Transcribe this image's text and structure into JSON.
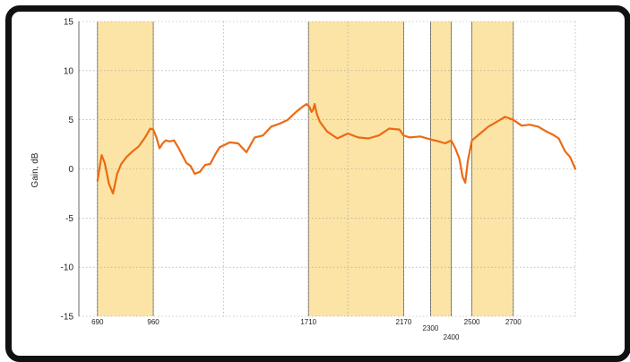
{
  "chart_data": {
    "type": "line",
    "ylabel": "Gain, dB",
    "xlabel": "",
    "xlim": [
      600,
      3000
    ],
    "ylim": [
      -15,
      15
    ],
    "y_ticks": [
      -15,
      -10,
      -5,
      0,
      5,
      10,
      15
    ],
    "grid": true,
    "x_tick_labels": [
      {
        "label": "690",
        "x": 690
      },
      {
        "label": "960",
        "x": 960
      },
      {
        "label": "1710",
        "x": 1710
      },
      {
        "label": "2170",
        "x": 2170
      },
      {
        "label": "2300",
        "x": 2300
      },
      {
        "label": "2400",
        "x": 2400
      },
      {
        "label": "2500",
        "x": 2500
      },
      {
        "label": "2700",
        "x": 2700
      }
    ],
    "x_grid": [
      690,
      960,
      1300,
      1710,
      1900,
      2170,
      2300,
      2400,
      2500,
      2700,
      3000
    ],
    "bands": [
      {
        "x0": 690,
        "x1": 960
      },
      {
        "x0": 1710,
        "x1": 2170
      },
      {
        "x0": 2300,
        "x1": 2400
      },
      {
        "x0": 2500,
        "x1": 2700
      }
    ],
    "band_color": "#fbe4a6",
    "line_color": "#ec6a14",
    "series": [
      {
        "x": [
          690,
          710,
          725,
          745,
          765,
          785,
          805,
          830,
          860,
          890,
          920,
          945,
          960,
          975,
          990,
          1005,
          1020,
          1040,
          1060,
          1080,
          1100,
          1120,
          1140,
          1160,
          1185,
          1210,
          1235,
          1260,
          1280,
          1300,
          1330,
          1370,
          1410,
          1450,
          1490,
          1530,
          1570,
          1610,
          1650,
          1680,
          1700,
          1715,
          1725,
          1732,
          1740,
          1750,
          1765,
          1800,
          1850,
          1900,
          1950,
          2000,
          2050,
          2100,
          2150,
          2170,
          2200,
          2250,
          2300,
          2340,
          2370,
          2400,
          2420,
          2440,
          2455,
          2468,
          2480,
          2500,
          2540,
          2580,
          2620,
          2660,
          2700,
          2740,
          2780,
          2820,
          2860,
          2890,
          2920,
          2950,
          2975,
          3000
        ],
        "y": [
          -1.2,
          1.4,
          0.6,
          -1.5,
          -2.5,
          -0.5,
          0.5,
          1.2,
          1.8,
          2.3,
          3.2,
          4.1,
          4.0,
          3.2,
          2.1,
          2.6,
          2.9,
          2.8,
          2.9,
          2.2,
          1.4,
          0.6,
          0.3,
          -0.5,
          -0.3,
          0.4,
          0.5,
          1.5,
          2.2,
          2.4,
          2.7,
          2.6,
          1.7,
          3.2,
          3.4,
          4.3,
          4.6,
          5.0,
          5.8,
          6.3,
          6.6,
          6.3,
          5.8,
          6.0,
          6.6,
          5.6,
          4.8,
          3.8,
          3.1,
          3.6,
          3.2,
          3.1,
          3.4,
          4.1,
          4.0,
          3.4,
          3.2,
          3.3,
          3.0,
          2.8,
          2.6,
          2.9,
          2.1,
          1.0,
          -0.8,
          -1.4,
          0.8,
          2.9,
          3.6,
          4.3,
          4.8,
          5.3,
          5.0,
          4.4,
          4.5,
          4.3,
          3.8,
          3.5,
          3.1,
          1.8,
          1.2,
          0.0
        ]
      }
    ]
  }
}
